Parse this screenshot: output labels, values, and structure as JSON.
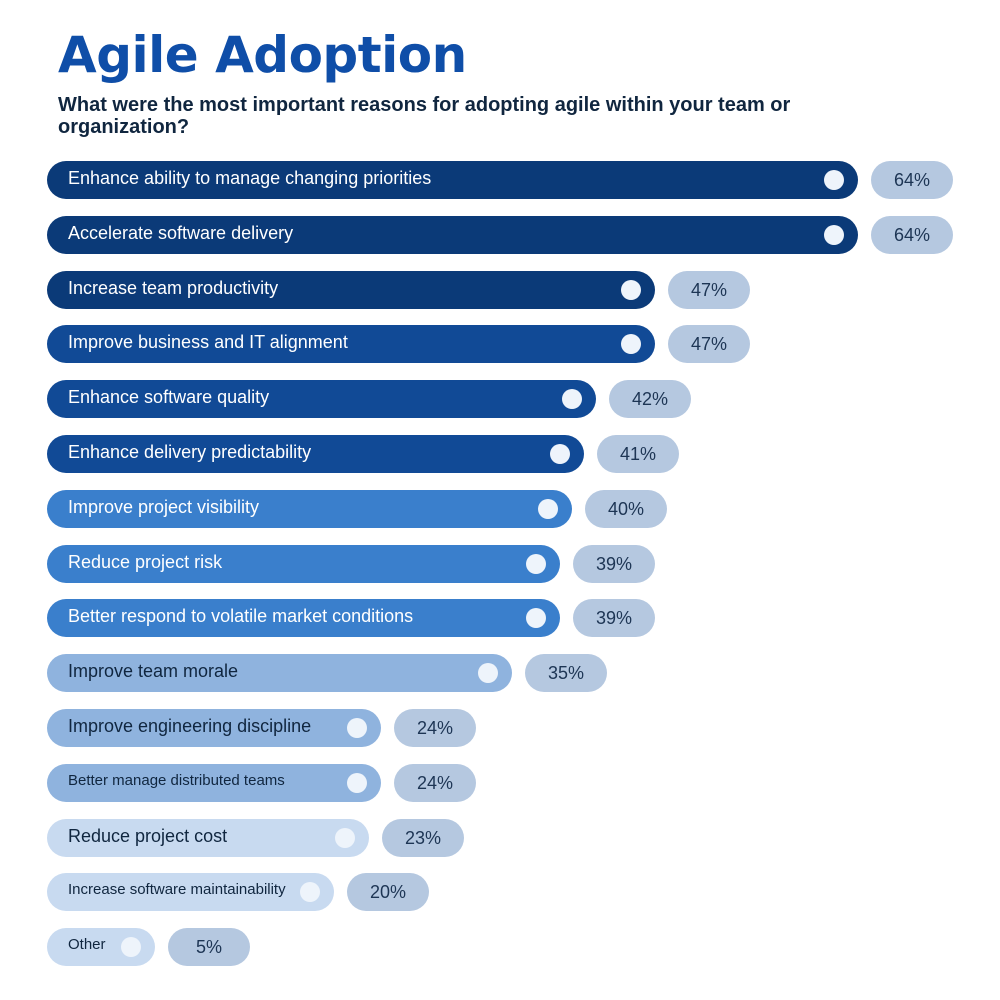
{
  "header": {
    "title": "Agile Adoption",
    "subtitle": "What were the most important reasons for adopting agile within your team or organization?"
  },
  "colors": {
    "title": "#0f4ea8",
    "dark": "#0b3a78",
    "mid_dark": "#114a96",
    "medium": "#3a7fcc",
    "light": "#8fb3de",
    "pale": "#c8daf0",
    "value_pill": "#b5c8e0"
  },
  "chart_data": {
    "type": "bar",
    "orientation": "horizontal",
    "title": "Agile Adoption",
    "subtitle": "What were the most important reasons for adopting agile within your team or organization?",
    "xlabel": "",
    "ylabel": "",
    "xlim": [
      0,
      64
    ],
    "unit": "%",
    "categories": [
      "Enhance ability to manage changing priorities",
      "Accelerate software delivery",
      "Increase team productivity",
      "Improve business and IT alignment",
      "Enhance software quality",
      "Enhance delivery predictability",
      "Improve project visibility",
      "Reduce project risk",
      "Better respond to volatile market conditions",
      "Improve team morale",
      "Improve engineering discipline",
      "Better manage distributed teams",
      "Reduce project cost",
      "Increase software maintainability",
      "Other"
    ],
    "values": [
      64,
      64,
      47,
      47,
      42,
      41,
      40,
      39,
      39,
      35,
      24,
      24,
      23,
      20,
      5
    ],
    "value_labels": [
      "64%",
      "64%",
      "47%",
      "47%",
      "42%",
      "41%",
      "40%",
      "39%",
      "39%",
      "35%",
      "24%",
      "24%",
      "23%",
      "20%",
      "5%"
    ],
    "bar_colors": [
      "#0b3a78",
      "#0b3a78",
      "#0b3a78",
      "#114a96",
      "#114a96",
      "#114a96",
      "#3a7fcc",
      "#3a7fcc",
      "#3a7fcc",
      "#8fb3de",
      "#8fb3de",
      "#8fb3de",
      "#c8daf0",
      "#c8daf0",
      "#c8daf0"
    ],
    "label_colors": [
      "#ffffff",
      "#ffffff",
      "#ffffff",
      "#ffffff",
      "#ffffff",
      "#ffffff",
      "#ffffff",
      "#ffffff",
      "#ffffff",
      "#10263f",
      "#10263f",
      "#10263f",
      "#10263f",
      "#10263f",
      "#10263f"
    ],
    "grid": false,
    "legend": "none"
  }
}
